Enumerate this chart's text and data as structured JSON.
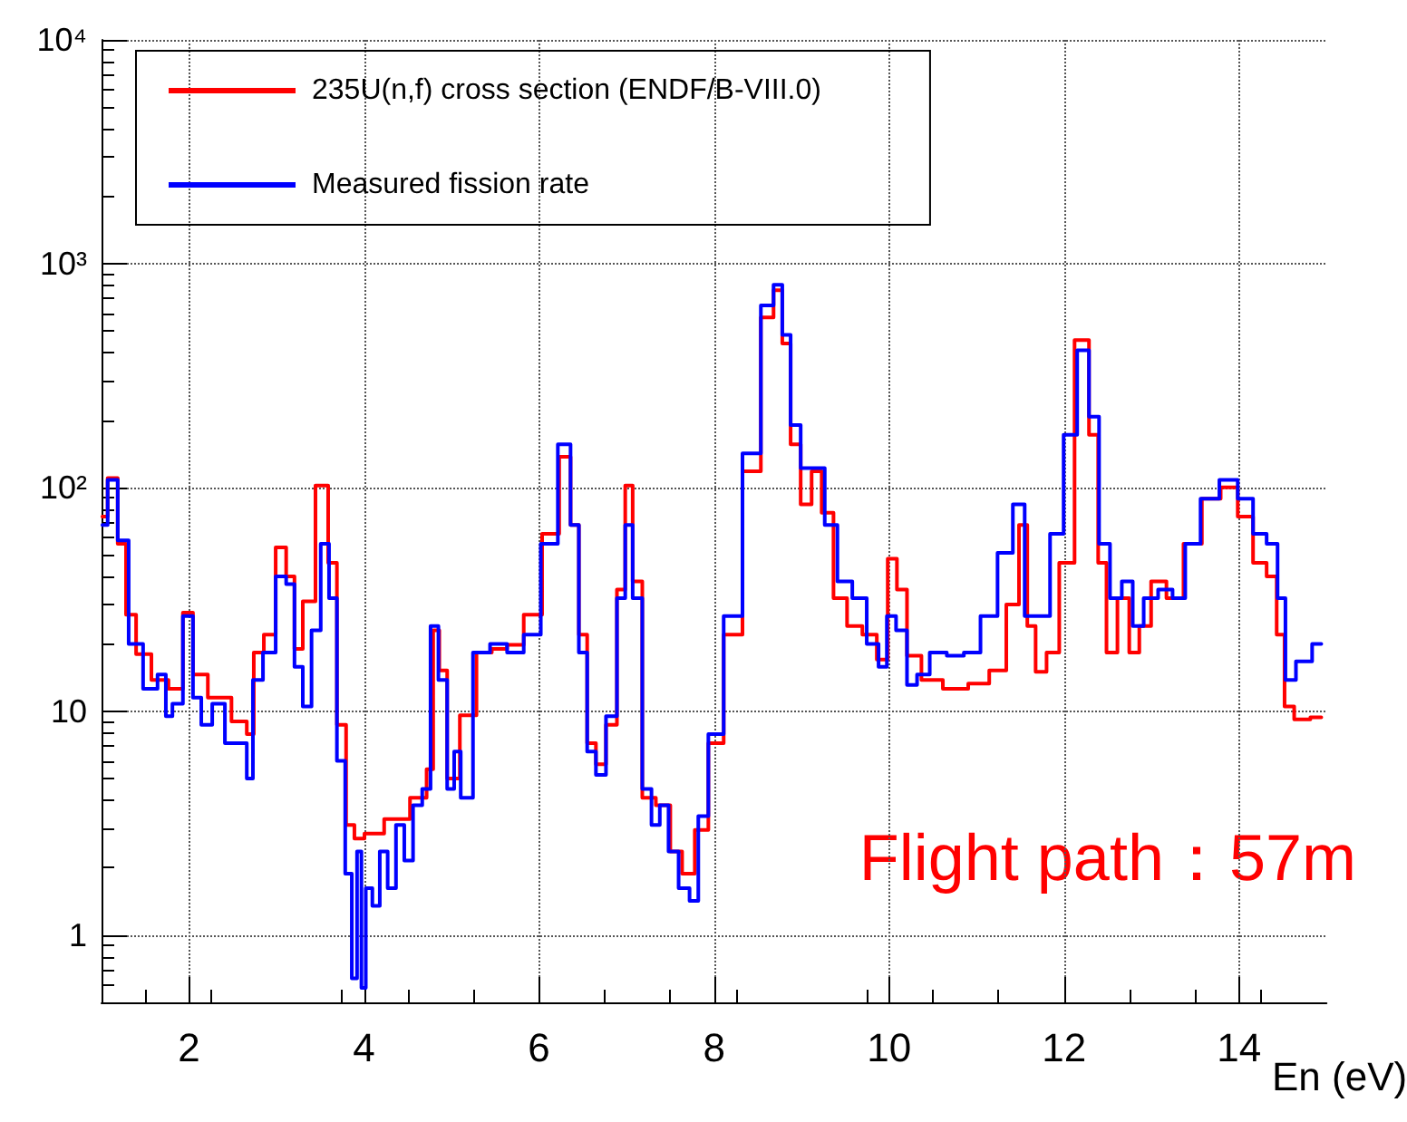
{
  "chart_data": {
    "type": "step",
    "xlabel": "En (eV)",
    "annotations": [
      "Flight path：57m"
    ],
    "xlim": [
      1,
      15
    ],
    "xticks": [
      2,
      4,
      6,
      8,
      10,
      12,
      14
    ],
    "ylim": [
      0.5,
      10000
    ],
    "yticks": [
      1,
      10,
      {
        "value": 100,
        "label": "10²"
      },
      {
        "value": 1000,
        "label": "10³"
      },
      {
        "value": 10000,
        "label": "10⁴"
      }
    ],
    "log": "y",
    "grid": true,
    "legend": "top left",
    "line_style": "solid",
    "marker": "none",
    "series": [
      {
        "name": "235U(n,f) cross section (ENDF/B-VIII.0)",
        "color": "#ff0000",
        "x": [
          1.01,
          1.13,
          1.24,
          1.32,
          1.47,
          1.67,
          1.86,
          2.0,
          2.09,
          2.34,
          2.63,
          2.69,
          2.79,
          2.92,
          3.06,
          3.16,
          3.25,
          3.35,
          3.54,
          3.64,
          3.74,
          3.85,
          3.93,
          4.08,
          4.38,
          4.67,
          4.76,
          4.82,
          4.9,
          5.0,
          5.19,
          5.38,
          5.54,
          5.73,
          5.92,
          6.15,
          6.31,
          6.41,
          6.5,
          6.6,
          6.7,
          6.83,
          6.95,
          7.02,
          7.12,
          7.24,
          7.43,
          7.57,
          7.7,
          7.86,
          8.01,
          8.21,
          8.44,
          8.63,
          8.73,
          8.83,
          8.92,
          9.06,
          9.17,
          9.29,
          9.44,
          9.6,
          9.79,
          9.93,
          10.04,
          10.14,
          10.27,
          10.47,
          10.76,
          11.05,
          11.24,
          11.44,
          11.53,
          11.63,
          11.72,
          11.88,
          12.01,
          12.23,
          12.34,
          12.44,
          12.53,
          12.69,
          12.8,
          12.92,
          13.07,
          13.27,
          13.46,
          13.69,
          13.89,
          14.08,
          14.24,
          14.39,
          14.47,
          14.57,
          14.69,
          14.94
        ],
        "values": [
          74,
          110,
          56,
          27,
          18,
          13.8,
          12.6,
          27.6,
          14.6,
          11.5,
          9,
          7.9,
          18.3,
          22,
          54,
          40,
          19,
          31,
          102,
          46,
          8.7,
          3.1,
          2.7,
          2.84,
          3.3,
          4.1,
          5.5,
          23,
          15.2,
          5,
          9.6,
          18.3,
          19,
          19.8,
          27,
          62,
          137,
          68,
          22,
          7.2,
          5.8,
          8.7,
          35,
          102,
          38,
          4.1,
          3.8,
          2.36,
          1.88,
          2.95,
          7.2,
          22,
          118,
          575,
          760,
          440,
          156,
          84,
          118,
          77,
          32,
          24,
          22,
          17,
          48,
          35,
          17.7,
          13.8,
          12.6,
          13.3,
          15.2,
          30,
          68,
          24,
          15,
          18.3,
          46,
          455,
          172,
          46,
          18.3,
          32,
          18.3,
          24,
          38,
          32,
          56,
          89,
          100,
          74,
          46,
          40,
          22,
          10.5,
          9.2,
          9.4
        ]
      },
      {
        "name": "Measured fission rate",
        "color": "#0000ff",
        "x": [
          1.01,
          1.13,
          1.24,
          1.38,
          1.57,
          1.71,
          1.76,
          1.86,
          2.0,
          2.09,
          2.19,
          2.34,
          2.48,
          2.63,
          2.69,
          2.77,
          2.92,
          3.06,
          3.16,
          3.25,
          3.35,
          3.45,
          3.56,
          3.64,
          3.74,
          3.83,
          3.89,
          3.95,
          3.99,
          4.05,
          4.14,
          4.22,
          4.32,
          4.41,
          4.51,
          4.61,
          4.72,
          4.8,
          4.9,
          5.0,
          5.06,
          5.15,
          5.34,
          5.54,
          5.73,
          5.92,
          6.12,
          6.31,
          6.41,
          6.5,
          6.6,
          6.7,
          6.83,
          6.95,
          7.02,
          7.12,
          7.24,
          7.33,
          7.43,
          7.53,
          7.66,
          7.78,
          7.86,
          8.01,
          8.21,
          8.44,
          8.63,
          8.73,
          8.83,
          8.92,
          9.06,
          9.21,
          9.32,
          9.5,
          9.66,
          9.83,
          9.93,
          10.02,
          10.14,
          10.27,
          10.37,
          10.56,
          10.76,
          10.95,
          11.14,
          11.34,
          11.49,
          11.61,
          11.76,
          11.92,
          12.07,
          12.23,
          12.34,
          12.46,
          12.59,
          12.73,
          12.84,
          12.98,
          13.17,
          13.31,
          13.46,
          13.66,
          13.89,
          14.08,
          14.24,
          14.39,
          14.49,
          14.57,
          14.73,
          14.94
        ],
        "values": [
          68,
          108,
          58,
          20,
          12.6,
          14.6,
          9.5,
          10.8,
          26.6,
          11.5,
          8.7,
          10.8,
          7.2,
          7.2,
          5,
          13.8,
          18.3,
          40,
          37,
          15.8,
          10.5,
          23,
          56,
          32,
          6,
          1.88,
          0.64,
          2.36,
          0.58,
          1.62,
          1.35,
          2.36,
          1.62,
          3.1,
          2.15,
          3.8,
          4.5,
          24,
          13.8,
          4.5,
          6.6,
          4.1,
          18.3,
          20,
          18.3,
          22,
          56,
          156,
          68,
          18.3,
          6.6,
          5.2,
          9.5,
          32,
          68,
          32,
          4.5,
          3.1,
          3.8,
          2.36,
          1.62,
          1.42,
          3.4,
          7.9,
          26.6,
          142,
          650,
          805,
          480,
          190,
          122,
          122,
          68,
          38,
          32,
          20,
          15.8,
          26.6,
          23,
          13.1,
          14.6,
          18.3,
          17.7,
          18.3,
          26.6,
          51,
          84,
          26.6,
          26.6,
          62,
          172,
          410,
          207,
          56,
          32,
          38,
          24,
          32,
          35,
          32,
          56,
          89,
          108,
          89,
          62,
          56,
          32,
          13.8,
          16.7,
          20
        ]
      }
    ]
  }
}
